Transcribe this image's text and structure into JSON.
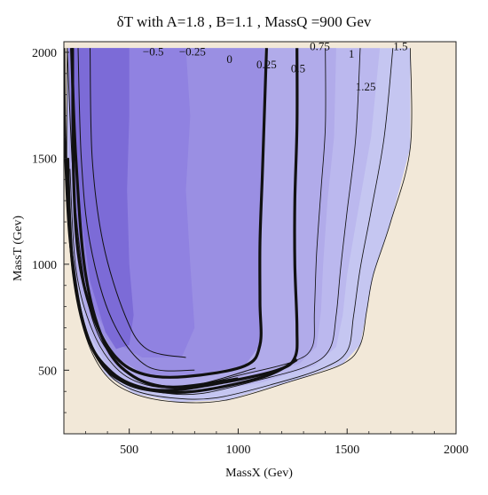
{
  "chart_data": {
    "type": "contour",
    "title": "δT   with   A=1.8 , B=1.1 , MassQ =900  Gev",
    "xlabel": "MassX (Gev)",
    "ylabel": "MassT (Gev)",
    "xlim": [
      200,
      2000
    ],
    "ylim": [
      200,
      2050
    ],
    "x_ticks": [
      500,
      1000,
      1500,
      2000
    ],
    "y_ticks": [
      500,
      1000,
      1500,
      2000
    ],
    "grid": false,
    "colors": {
      "background": "#f2e8d8",
      "levels": [
        "#7a68d6",
        "#8574dc",
        "#8f81e0",
        "#9a8fe3",
        "#a69de7",
        "#b1abea",
        "#bbb8ee",
        "#c5c6f1"
      ],
      "line": "#111111"
    },
    "levels": [
      {
        "value": -0.5,
        "label": "−0.5",
        "bold": false,
        "line": [
          [
            760,
            560
          ],
          [
            580,
            600
          ],
          [
            480,
            760
          ],
          [
            380,
            1100
          ],
          [
            330,
            1500
          ],
          [
            320,
            2020
          ]
        ]
      },
      {
        "value": -0.25,
        "label": "−0.25",
        "bold": false,
        "line": [
          [
            800,
            500
          ],
          [
            580,
            520
          ],
          [
            420,
            740
          ],
          [
            320,
            1100
          ],
          [
            280,
            1500
          ],
          [
            265,
            2020
          ]
        ]
      },
      {
        "value": 0,
        "label": "0",
        "bold": true,
        "line": [
          [
            1000,
            460
          ],
          [
            700,
            420
          ],
          [
            520,
            470
          ],
          [
            390,
            620
          ],
          [
            300,
            950
          ],
          [
            255,
            1500
          ],
          [
            235,
            2020
          ]
        ]
      },
      {
        "value": 0.25,
        "label": "0.25",
        "bold": false,
        "line": [
          [
            1080,
            510
          ],
          [
            800,
            430
          ],
          [
            600,
            440
          ],
          [
            440,
            540
          ],
          [
            320,
            780
          ],
          [
            250,
            1300
          ],
          [
            215,
            2020
          ]
        ]
      },
      {
        "value": 0.5,
        "label": "0.5",
        "bold": true,
        "line": [
          [
            1270,
            550
          ],
          [
            1120,
            470
          ],
          [
            800,
            400
          ],
          [
            590,
            410
          ],
          [
            420,
            490
          ],
          [
            300,
            680
          ],
          [
            230,
            1100
          ],
          [
            205,
            1600
          ],
          [
            200,
            2020
          ]
        ]
      }
    ],
    "level_labels": [
      {
        "label": "−0.5",
        "x": 610,
        "y": 1985
      },
      {
        "label": "−0.25",
        "x": 790,
        "y": 1985
      },
      {
        "label": "0",
        "x": 960,
        "y": 1950
      },
      {
        "label": "0.25",
        "x": 1130,
        "y": 1925
      },
      {
        "label": "0.5",
        "x": 1275,
        "y": 1905
      },
      {
        "label": "0.75",
        "x": 1375,
        "y": 2010
      },
      {
        "label": "1",
        "x": 1520,
        "y": 1975
      },
      {
        "label": "1.25",
        "x": 1585,
        "y": 1820
      },
      {
        "label": "1.5",
        "x": 1745,
        "y": 2010
      }
    ]
  }
}
